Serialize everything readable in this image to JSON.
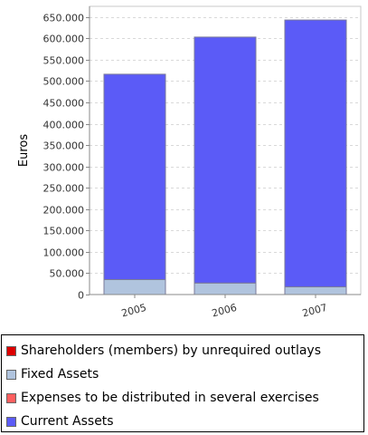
{
  "chart_data": {
    "type": "bar",
    "stacked": true,
    "title": "",
    "xlabel": "",
    "ylabel": "Euros",
    "categories": [
      "2005",
      "2006",
      "2007"
    ],
    "ylim": [
      0,
      675000
    ],
    "yticks": [
      0,
      50000,
      100000,
      150000,
      200000,
      250000,
      300000,
      350000,
      400000,
      450000,
      500000,
      550000,
      600000,
      650000
    ],
    "ytick_labels": [
      "0",
      "50.000",
      "100.000",
      "150.000",
      "200.000",
      "250.000",
      "300.000",
      "350.000",
      "400.000",
      "450.000",
      "500.000",
      "550.000",
      "600.000",
      "650.000"
    ],
    "grid": true,
    "legend_position": "bottom",
    "series": [
      {
        "name": "Shareholders (members) by unrequired outlays",
        "color": "#dd0000",
        "values": [
          0,
          0,
          0
        ]
      },
      {
        "name": "Fixed Assets",
        "color": "#b0c4de",
        "values": [
          35000,
          27000,
          18000
        ]
      },
      {
        "name": "Expenses to be distributed in several exercises",
        "color": "#ff5f5f",
        "values": [
          0,
          0,
          0
        ]
      },
      {
        "name": "Current Assets",
        "color": "#5b5bf7",
        "values": [
          481000,
          576000,
          625000
        ]
      }
    ]
  }
}
